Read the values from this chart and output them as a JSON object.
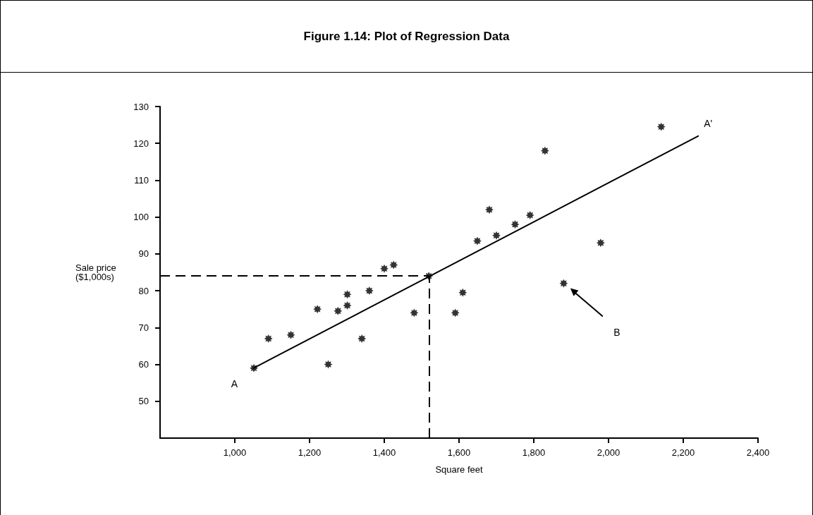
{
  "chart_data": {
    "type": "scatter",
    "title": "Figure 1.14: Plot of Regression Data",
    "xlabel": "Square feet",
    "ylabel": "Sale price\n($1,000s)",
    "x": [
      1051,
      1090,
      1150,
      1221,
      1250,
      1276,
      1301,
      1301,
      1340,
      1360,
      1400,
      1425,
      1480,
      1519,
      1590,
      1610,
      1649,
      1681,
      1700,
      1750,
      1790,
      1830,
      1880,
      1979,
      2141
    ],
    "series": [
      {
        "color": "#000000",
        "values": [
          59,
          67,
          68,
          75,
          60,
          74.5,
          76,
          79,
          67,
          80,
          86,
          87,
          74,
          84,
          74,
          79.5,
          93.5,
          102,
          95,
          98,
          100.5,
          118,
          82,
          93,
          124.5
        ]
      },
      {
        "type": "line",
        "color": "#000000",
        "marker": "none",
        "x": [
          1050,
          2240
        ],
        "values": [
          59,
          122
        ]
      }
    ],
    "marker": "star",
    "xlim": [
      800,
      2400
    ],
    "xticks": [
      {
        "value": 1000,
        "label": "1,000"
      },
      {
        "value": 1200,
        "label": "1,200"
      },
      {
        "value": 1400,
        "label": "1,400"
      },
      {
        "value": 1600,
        "label": "1,600"
      },
      {
        "value": 1800,
        "label": "1,800"
      },
      {
        "value": 2000,
        "label": "2,000"
      },
      {
        "value": 2200,
        "label": "2,200"
      },
      {
        "value": 2400,
        "label": "2,400"
      }
    ],
    "ylim": [
      40,
      130
    ],
    "yticks": [
      50,
      60,
      70,
      80,
      90,
      100,
      110,
      120,
      130
    ],
    "ref_lines": [
      {
        "axis": "x",
        "value": 1520,
        "line_style": "dashed",
        "color": "#000000"
      },
      {
        "axis": "y",
        "value": 84,
        "line_style": "dashed",
        "color": "#000000"
      }
    ],
    "annotations": [
      {
        "text": "A",
        "x": 1050,
        "y": 59
      },
      {
        "text": "A'",
        "x": 2240,
        "y": 122
      },
      "B"
    ],
    "grid": false
  }
}
